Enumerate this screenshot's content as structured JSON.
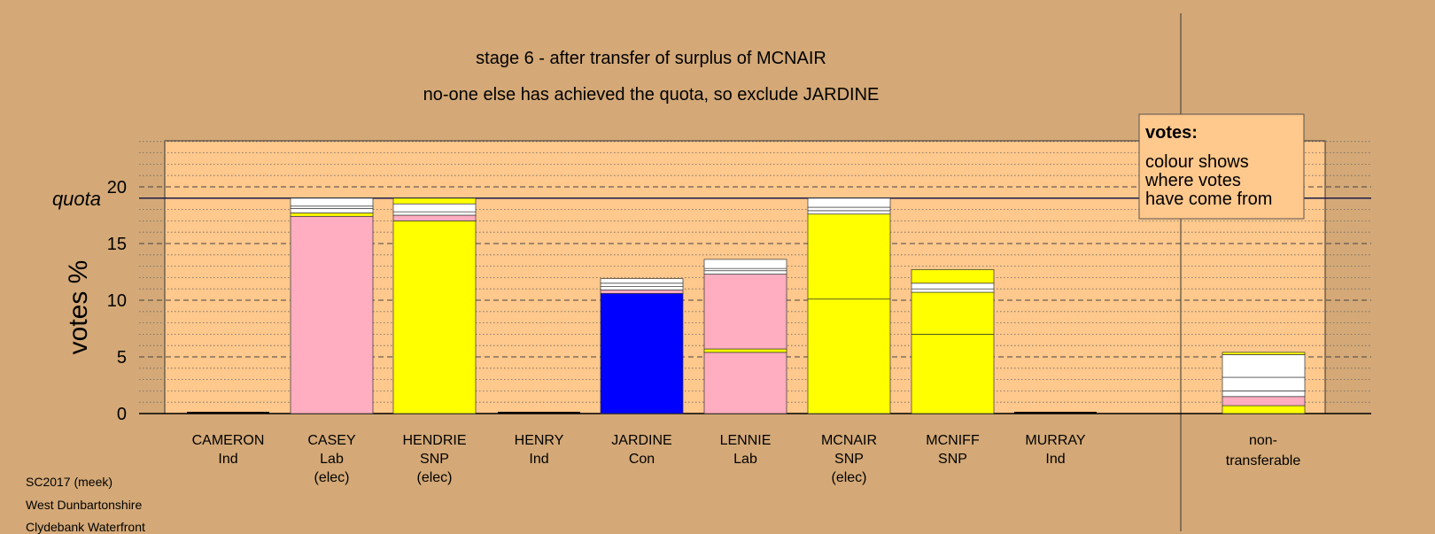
{
  "chart_data": {
    "type": "bar",
    "stacked": true,
    "title": "stage 6 - after transfer of surplus of MCNAIR",
    "subtitle": "no-one else has achieved the quota, so exclude JARDINE",
    "ylabel": "votes %",
    "ylim": [
      0,
      24
    ],
    "yticks": [
      0,
      5,
      10,
      15,
      20
    ],
    "quota_label": "quota",
    "quota_value": 19.0,
    "grid": true,
    "legend": {
      "position": "top-right",
      "title": "votes:",
      "lines": [
        "colour shows",
        "where votes",
        "have come from"
      ]
    },
    "categories": [
      {
        "name": "CAMERON",
        "party": "Ind",
        "status": ""
      },
      {
        "name": "CASEY",
        "party": "Lab",
        "status": "(elec)"
      },
      {
        "name": "HENDRIE",
        "party": "SNP",
        "status": "(elec)"
      },
      {
        "name": "HENRY",
        "party": "Ind",
        "status": ""
      },
      {
        "name": "JARDINE",
        "party": "Con",
        "status": ""
      },
      {
        "name": "LENNIE",
        "party": "Lab",
        "status": ""
      },
      {
        "name": "MCNAIR",
        "party": "SNP",
        "status": "(elec)"
      },
      {
        "name": "MCNIFF",
        "party": "SNP",
        "status": ""
      },
      {
        "name": "MURRAY",
        "party": "Ind",
        "status": ""
      }
    ],
    "extra_category": {
      "name": "non-",
      "party": "transferable"
    },
    "bars": [
      {
        "segments": []
      },
      {
        "segments": [
          {
            "value": 17.4,
            "color": "#ffadc0"
          },
          {
            "value": 0.3,
            "color": "#ffff00"
          },
          {
            "value": 0.4,
            "color": "#ffffff"
          },
          {
            "value": 0.2,
            "color": "#ffffff"
          },
          {
            "value": 0.7,
            "color": "#ffffff"
          }
        ]
      },
      {
        "segments": [
          {
            "value": 17.0,
            "color": "#ffff00"
          },
          {
            "value": 0.5,
            "color": "#ffadc0"
          },
          {
            "value": 0.3,
            "color": "#ffffff"
          },
          {
            "value": 0.7,
            "color": "#ffffff"
          },
          {
            "value": 0.5,
            "color": "#ffff00"
          }
        ]
      },
      {
        "segments": []
      },
      {
        "segments": [
          {
            "value": 10.6,
            "color": "#0000ff"
          },
          {
            "value": 0.3,
            "color": "#ffadc0"
          },
          {
            "value": 0.3,
            "color": "#ffffff"
          },
          {
            "value": 0.3,
            "color": "#ffffff"
          },
          {
            "value": 0.4,
            "color": "#ffffff"
          }
        ]
      },
      {
        "segments": [
          {
            "value": 5.4,
            "color": "#ffadc0"
          },
          {
            "value": 0.3,
            "color": "#ffff00"
          },
          {
            "value": 6.6,
            "color": "#ffadc0"
          },
          {
            "value": 0.3,
            "color": "#ffffff"
          },
          {
            "value": 0.2,
            "color": "#ffffff"
          },
          {
            "value": 0.8,
            "color": "#ffffff"
          }
        ]
      },
      {
        "segments": [
          {
            "value": 10.1,
            "color": "#ffff00"
          },
          {
            "value": 7.5,
            "color": "#ffff00"
          },
          {
            "value": 0.3,
            "color": "#ffffff"
          },
          {
            "value": 0.3,
            "color": "#ffffff"
          },
          {
            "value": 0.8,
            "color": "#ffffff"
          }
        ]
      },
      {
        "segments": [
          {
            "value": 7.0,
            "color": "#ffff00"
          },
          {
            "value": 3.7,
            "color": "#ffff00"
          },
          {
            "value": 0.3,
            "color": "#ffffff"
          },
          {
            "value": 0.5,
            "color": "#ffffff"
          },
          {
            "value": 1.2,
            "color": "#ffff00"
          }
        ]
      },
      {
        "segments": []
      },
      {
        "segments": [
          {
            "value": 0.7,
            "color": "#ffff00"
          },
          {
            "value": 0.8,
            "color": "#ffadc0"
          },
          {
            "value": 0.5,
            "color": "#ffffff"
          },
          {
            "value": 1.2,
            "color": "#ffffff"
          },
          {
            "value": 2.0,
            "color": "#ffffff"
          },
          {
            "value": 0.2,
            "color": "#ffff00"
          }
        ]
      }
    ]
  },
  "footer": {
    "line1": "SC2017 (meek)",
    "line2": "West Dunbartonshire",
    "line3": "Clydebank Waterfront"
  },
  "colors": {
    "background": "#d4a977",
    "plot_background": "#ffc88c",
    "snp": "#ffff00",
    "lab": "#ffadc0",
    "con": "#0000ff",
    "other": "#ffffff"
  }
}
